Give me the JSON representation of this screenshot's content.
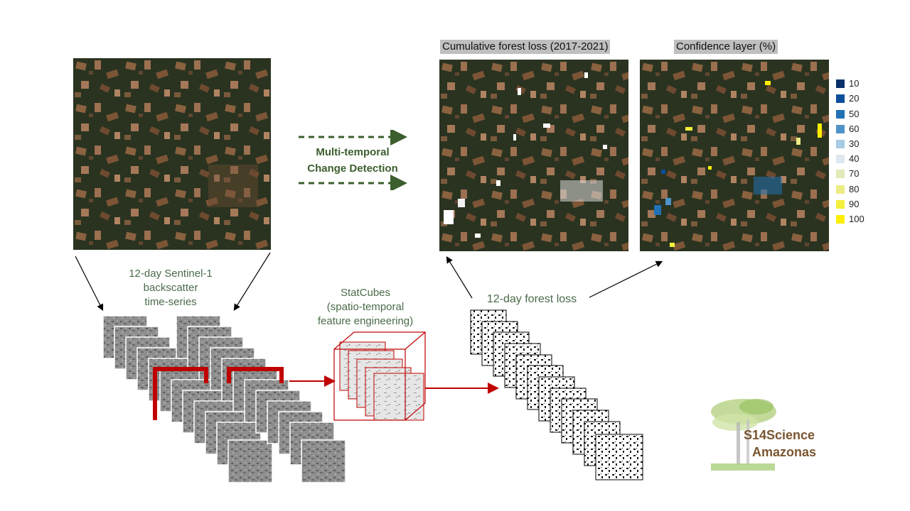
{
  "titles": {
    "cumulative": "Cumulative forest loss (2017-2021)",
    "confidence": "Confidence layer (%)"
  },
  "labels": {
    "multitemporal_line1": "Multi-temporal",
    "multitemporal_line2": "Change Detection",
    "sentinel_line1": "12-day Sentinel-1",
    "sentinel_line2": "backscatter",
    "sentinel_line3": "time-series",
    "statcubes_line1": "StatCubes",
    "statcubes_line2": "(spatio-temporal",
    "statcubes_line3": "feature engineering)",
    "forest_loss": "12-day forest loss"
  },
  "legend": [
    {
      "label": "10",
      "color": "#08306b"
    },
    {
      "label": "20",
      "color": "#0b4f9c"
    },
    {
      "label": "50",
      "color": "#2171b5"
    },
    {
      "label": "60",
      "color": "#4f93c8"
    },
    {
      "label": "30",
      "color": "#a6cbe4"
    },
    {
      "label": "40",
      "color": "#dfe8ee"
    },
    {
      "label": "70",
      "color": "#e3e9b8"
    },
    {
      "label": "80",
      "color": "#ecec84"
    },
    {
      "label": "90",
      "color": "#f3ef3c"
    },
    {
      "label": "100",
      "color": "#ffee00"
    }
  ],
  "logo": {
    "line1": "S14Science",
    "line2": "Amazonas"
  },
  "colors": {
    "highlight_red": "#c00000",
    "arrow_green": "#3d5e2e",
    "label_green": "#4a6b4a"
  }
}
